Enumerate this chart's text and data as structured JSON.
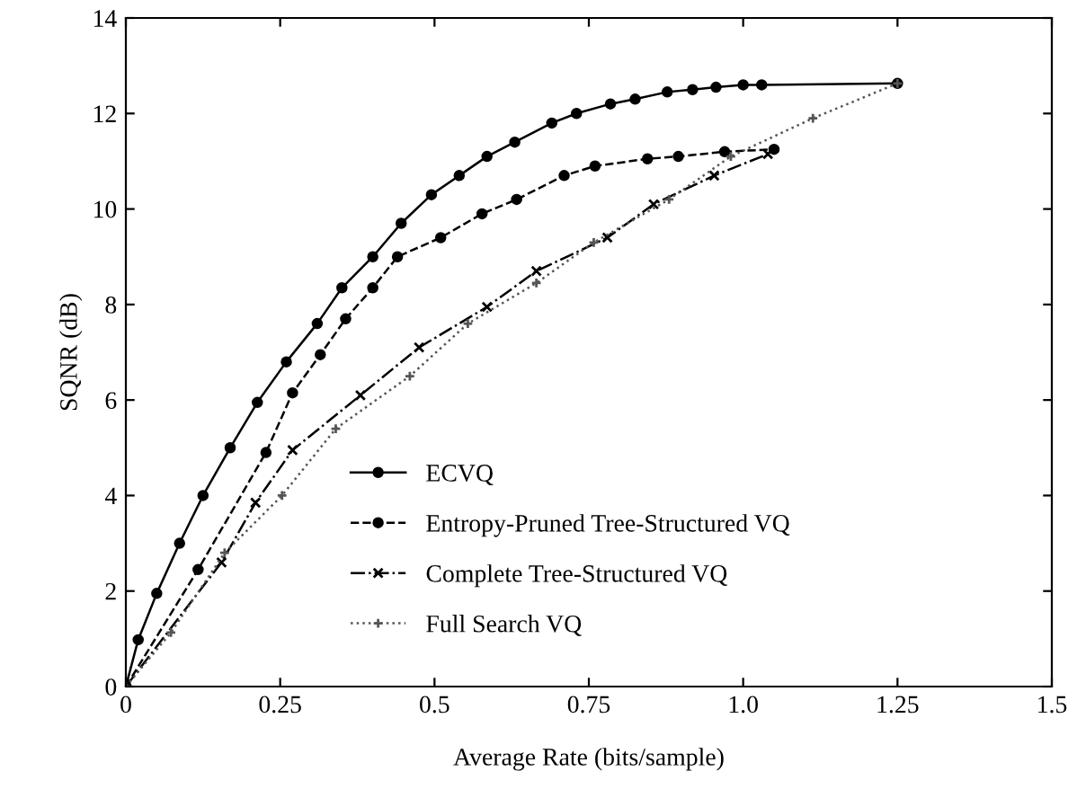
{
  "chart_data": {
    "type": "line",
    "xlabel": "Average Rate (bits/sample)",
    "ylabel": "SQNR (dB)",
    "xlim": [
      0,
      1.5
    ],
    "ylim": [
      0,
      14
    ],
    "xticks": [
      0,
      0.25,
      0.5,
      0.75,
      {
        "value": 1,
        "label": "1.0"
      },
      1.25,
      1.5
    ],
    "yticks": [
      0,
      2,
      4,
      6,
      8,
      10,
      12,
      14
    ],
    "grid": false,
    "legend": "bottom",
    "series": [
      {
        "name": "ECVQ",
        "color": "#000000",
        "marker": "circle",
        "line_style": "solid",
        "x": [
          0,
          0.02,
          0.05,
          0.087,
          0.125,
          0.169,
          0.213,
          0.26,
          0.31,
          0.35,
          0.4,
          0.446,
          0.495,
          0.54,
          0.585,
          0.63,
          0.69,
          0.73,
          0.785,
          0.825,
          0.877,
          0.918,
          0.956,
          1.0,
          1.03,
          1.25
        ],
        "values": [
          0,
          0.98,
          1.95,
          3.0,
          4.0,
          5.0,
          5.95,
          6.8,
          7.6,
          8.35,
          9.0,
          9.7,
          10.3,
          10.7,
          11.1,
          11.4,
          11.8,
          12.0,
          12.2,
          12.3,
          12.45,
          12.5,
          12.55,
          12.6,
          12.6,
          12.63
        ]
      },
      {
        "name": "Entropy-Pruned Tree-Structured VQ",
        "color": "#000000",
        "marker": "circle",
        "line_style": "dashed",
        "x": [
          0,
          0.117,
          0.227,
          0.27,
          0.315,
          0.356,
          0.4,
          0.44,
          0.51,
          0.577,
          0.633,
          0.71,
          0.76,
          0.845,
          0.895,
          0.97,
          1.05
        ],
        "values": [
          0,
          2.45,
          4.9,
          6.15,
          6.95,
          7.7,
          8.35,
          9.0,
          9.4,
          9.9,
          10.2,
          10.7,
          10.9,
          11.05,
          11.1,
          11.2,
          11.25
        ]
      },
      {
        "name": "Complete Tree-Structured VQ",
        "color": "#000000",
        "marker": "cross",
        "line_style": "dashdot",
        "x": [
          0,
          0.155,
          0.21,
          0.27,
          0.38,
          0.475,
          0.585,
          0.665,
          0.78,
          0.855,
          0.953,
          1.04
        ],
        "values": [
          0,
          2.6,
          3.85,
          4.95,
          6.1,
          7.1,
          7.95,
          8.7,
          9.4,
          10.1,
          10.7,
          11.15
        ]
      },
      {
        "name": "Full Search VQ",
        "color": "#555555",
        "marker": "plus",
        "line_style": "dotted",
        "x": [
          0,
          0.073,
          0.16,
          0.253,
          0.34,
          0.46,
          0.554,
          0.665,
          0.758,
          0.88,
          0.98,
          1.113,
          1.25
        ],
        "values": [
          0,
          1.13,
          2.8,
          4.0,
          5.4,
          6.5,
          7.6,
          8.45,
          9.3,
          10.2,
          11.1,
          11.9,
          12.63
        ]
      }
    ]
  }
}
